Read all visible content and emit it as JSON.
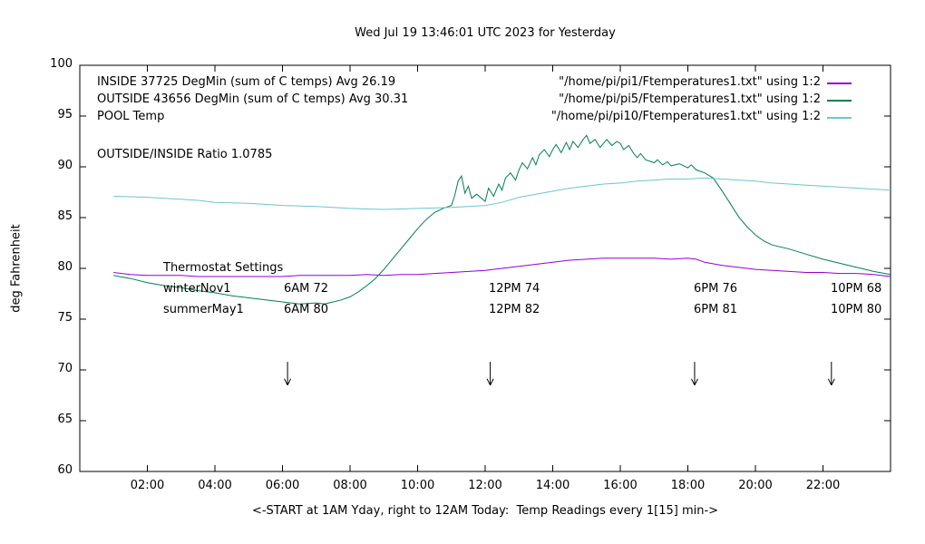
{
  "header": {
    "title": "Wed Jul 19 13:46:01 UTC 2023 for Yesterday"
  },
  "legend": {
    "rows": [
      {
        "label": "INSIDE 37725 DegMin (sum of C temps) Avg 26.19",
        "file": "\"/home/pi/pi1/Ftemperatures1.txt\" using 1:2",
        "color": "#9400d3"
      },
      {
        "label": "OUTSIDE 43656 DegMin (sum of C temps) Avg 30.31",
        "file": "\"/home/pi/pi5/Ftemperatures1.txt\" using 1:2",
        "color": "#008050"
      },
      {
        "label": "POOL Temp",
        "file": "\"/home/pi/pi10/Ftemperatures1.txt\" using 1:2",
        "color": "#6cc5d0"
      }
    ]
  },
  "ratio_label": "OUTSIDE/INSIDE Ratio 1.0785",
  "thermostat": {
    "title": "Thermostat Settings",
    "rows": [
      {
        "name": "winterNov1",
        "settings": [
          "6AM 72",
          "12PM 74",
          "6PM 76",
          "10PM 68"
        ]
      },
      {
        "name": "summerMay1",
        "settings": [
          "6AM 80",
          "12PM 82",
          "6PM 81",
          "10PM 80"
        ]
      }
    ]
  },
  "chart_data": {
    "type": "line",
    "title": "Wed Jul 19 13:46:01 UTC 2023 for Yesterday",
    "xlabel": "<-START at 1AM Yday, right to 12AM Today:  Temp Readings every 1[15] min->",
    "ylabel": "deg Fahrenheit",
    "xlim": [
      0,
      24
    ],
    "ylim": [
      60,
      100
    ],
    "grid": false,
    "legend_position": "top-left-inside",
    "x_ticks": [
      {
        "v": 2,
        "label": "02:00"
      },
      {
        "v": 4,
        "label": "04:00"
      },
      {
        "v": 6,
        "label": "06:00"
      },
      {
        "v": 8,
        "label": "08:00"
      },
      {
        "v": 10,
        "label": "10:00"
      },
      {
        "v": 12,
        "label": "12:00"
      },
      {
        "v": 14,
        "label": "14:00"
      },
      {
        "v": 16,
        "label": "16:00"
      },
      {
        "v": 18,
        "label": "18:00"
      },
      {
        "v": 20,
        "label": "20:00"
      },
      {
        "v": 22,
        "label": "22:00"
      }
    ],
    "y_ticks": [
      60,
      65,
      70,
      75,
      80,
      85,
      90,
      95,
      100
    ],
    "arrow_x": [
      6.15,
      12.15,
      18.2,
      22.25
    ],
    "arrow_y": [
      70.8,
      68.5
    ],
    "series": [
      {
        "name": "INSIDE",
        "color": "#9400d3",
        "x": [
          1,
          1.5,
          2,
          2.5,
          3,
          3.5,
          4,
          4.5,
          5,
          5.5,
          6,
          6.5,
          7,
          7.5,
          8,
          8.5,
          9,
          9.5,
          10,
          10.5,
          11,
          11.5,
          12,
          12.5,
          13,
          13.5,
          14,
          14.5,
          15,
          15.5,
          16,
          16.5,
          17,
          17.5,
          18,
          18.25,
          18.5,
          19,
          19.5,
          20,
          20.5,
          21,
          21.5,
          22,
          22.5,
          23,
          23.5,
          24
        ],
        "values": [
          79.6,
          79.4,
          79.3,
          79.3,
          79.3,
          79.2,
          79.2,
          79.2,
          79.2,
          79.2,
          79.2,
          79.3,
          79.3,
          79.3,
          79.3,
          79.4,
          79.3,
          79.4,
          79.4,
          79.5,
          79.6,
          79.7,
          79.8,
          80.0,
          80.2,
          80.4,
          80.6,
          80.8,
          80.9,
          81.0,
          81.0,
          81.0,
          81.0,
          80.9,
          81.0,
          80.9,
          80.6,
          80.3,
          80.1,
          79.9,
          79.8,
          79.7,
          79.6,
          79.6,
          79.5,
          79.5,
          79.4,
          79.2
        ]
      },
      {
        "name": "OUTSIDE",
        "color": "#008050",
        "x": [
          1,
          1.5,
          2,
          2.5,
          3,
          3.5,
          4,
          4.5,
          5,
          5.5,
          6,
          6.5,
          7,
          7.25,
          7.5,
          7.75,
          8,
          8.25,
          8.5,
          8.75,
          9,
          9.25,
          9.5,
          9.75,
          10,
          10.25,
          10.5,
          10.75,
          11,
          11.1,
          11.2,
          11.3,
          11.4,
          11.5,
          11.6,
          11.75,
          12,
          12.1,
          12.25,
          12.4,
          12.5,
          12.6,
          12.75,
          12.9,
          13,
          13.1,
          13.25,
          13.4,
          13.5,
          13.6,
          13.75,
          13.9,
          14,
          14.1,
          14.25,
          14.4,
          14.5,
          14.6,
          14.75,
          14.9,
          15,
          15.1,
          15.25,
          15.4,
          15.5,
          15.6,
          15.75,
          15.9,
          16,
          16.1,
          16.25,
          16.4,
          16.5,
          16.6,
          16.75,
          17,
          17.1,
          17.25,
          17.4,
          17.5,
          17.75,
          18,
          18.1,
          18.25,
          18.5,
          18.75,
          19,
          19.25,
          19.5,
          19.75,
          20,
          20.25,
          20.5,
          21,
          21.5,
          22,
          22.5,
          23,
          23.5,
          24
        ],
        "values": [
          79.3,
          79.0,
          78.6,
          78.3,
          78.1,
          77.8,
          77.6,
          77.3,
          77.1,
          76.9,
          76.7,
          76.5,
          76.6,
          76.5,
          76.7,
          76.9,
          77.2,
          77.7,
          78.3,
          79.0,
          79.9,
          80.9,
          81.9,
          82.9,
          83.9,
          84.8,
          85.5,
          85.9,
          86.2,
          87.2,
          88.6,
          89.1,
          87.4,
          88.1,
          86.9,
          87.3,
          86.6,
          87.9,
          87.1,
          88.3,
          87.7,
          88.9,
          89.4,
          88.7,
          89.7,
          90.4,
          89.8,
          90.9,
          90.2,
          91.2,
          91.7,
          91.0,
          91.7,
          92.2,
          91.4,
          92.4,
          91.7,
          92.5,
          91.9,
          92.7,
          93.1,
          92.3,
          92.7,
          91.9,
          92.3,
          92.7,
          92.1,
          92.5,
          92.3,
          91.7,
          92.1,
          91.3,
          90.9,
          91.3,
          90.7,
          90.4,
          90.7,
          90.2,
          90.5,
          90.1,
          90.3,
          89.9,
          90.2,
          89.7,
          89.4,
          88.9,
          87.7,
          86.4,
          85.1,
          84.1,
          83.3,
          82.7,
          82.3,
          81.9,
          81.4,
          80.9,
          80.5,
          80.1,
          79.7,
          79.4
        ]
      },
      {
        "name": "POOL Temp",
        "color": "#6cc5d0",
        "x": [
          1,
          1.5,
          2,
          2.5,
          3,
          3.5,
          4,
          4.5,
          5,
          5.5,
          6,
          6.5,
          7,
          7.5,
          8,
          8.5,
          9,
          9.5,
          10,
          10.5,
          11,
          11.5,
          12,
          12.5,
          13,
          13.5,
          14,
          14.5,
          15,
          15.5,
          16,
          16.5,
          17,
          17.5,
          18,
          18.5,
          19,
          19.5,
          20,
          20.5,
          21,
          21.5,
          22,
          22.5,
          23,
          23.5,
          24
        ],
        "values": [
          87.1,
          87.05,
          87.0,
          86.9,
          86.8,
          86.7,
          86.5,
          86.45,
          86.4,
          86.3,
          86.2,
          86.15,
          86.1,
          86.0,
          85.9,
          85.85,
          85.8,
          85.85,
          85.9,
          85.95,
          86.0,
          86.1,
          86.2,
          86.5,
          87.0,
          87.3,
          87.6,
          87.9,
          88.1,
          88.3,
          88.4,
          88.6,
          88.7,
          88.8,
          88.8,
          88.9,
          88.8,
          88.7,
          88.6,
          88.4,
          88.3,
          88.2,
          88.1,
          88.0,
          87.9,
          87.8,
          87.7
        ]
      }
    ]
  }
}
